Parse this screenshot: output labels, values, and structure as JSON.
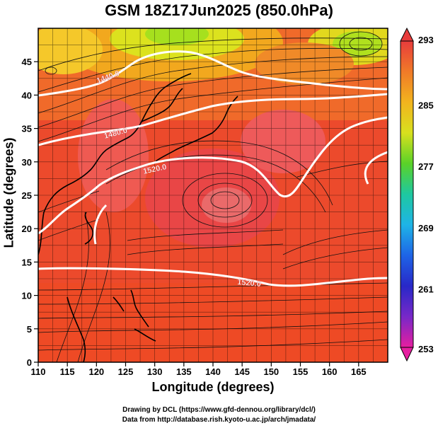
{
  "title": "GSM 18Z17Jun2025 (850.0hPa)",
  "xlabel": "Longitude (degrees)",
  "ylabel": "Latitude  (degrees)",
  "credits": [
    "Drawing by DCL (https://www.gfd-dennou.org/library/dcl/)",
    "Data from http://database.rish.kyoto-u.ac.jp/arch/jmadata/"
  ],
  "map": {
    "lon_range": [
      110,
      170
    ],
    "lat_range": [
      0,
      50
    ],
    "lon_ticks": [
      110,
      115,
      120,
      125,
      130,
      135,
      140,
      145,
      150,
      155,
      160,
      165
    ],
    "lat_ticks": [
      0,
      5,
      10,
      15,
      20,
      25,
      30,
      35,
      40,
      45
    ],
    "grid": true,
    "contours": [
      {
        "label": "1440.0"
      },
      {
        "label": "1480.0"
      },
      {
        "label": "1520.0"
      },
      {
        "label": "1520.0"
      }
    ],
    "colorbar": {
      "labels": [
        "293",
        "285",
        "277",
        "269",
        "261",
        "253"
      ],
      "colors": [
        "#e83c3c",
        "#f07a28",
        "#f2b41e",
        "#d8e01e",
        "#5ad228",
        "#1ec8a0",
        "#1eb4e6",
        "#1e64e6",
        "#2828c8",
        "#7828c8",
        "#e61ea0"
      ]
    }
  }
}
